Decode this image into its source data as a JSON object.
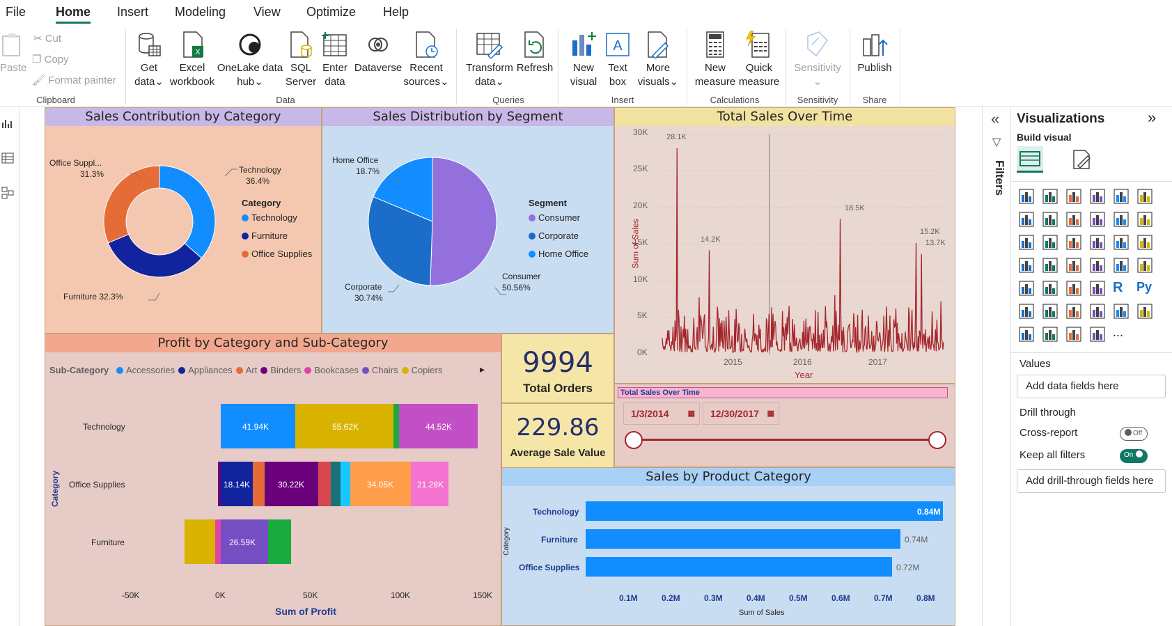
{
  "menu": {
    "items": [
      "File",
      "Home",
      "Insert",
      "Modeling",
      "View",
      "Optimize",
      "Help"
    ],
    "active": "Home"
  },
  "ribbon": {
    "clipboard": {
      "paste": "Paste",
      "cut": "Cut",
      "copy": "Copy",
      "format_painter": "Format painter",
      "label": "Clipboard"
    },
    "data": {
      "get_data": [
        "Get",
        "data"
      ],
      "excel": [
        "Excel",
        "workbook"
      ],
      "onelake": [
        "OneLake data",
        "hub"
      ],
      "sql": [
        "SQL",
        "Server"
      ],
      "enter": [
        "Enter",
        "data"
      ],
      "dataverse": "Dataverse",
      "recent": [
        "Recent",
        "sources"
      ],
      "label": "Data"
    },
    "queries": {
      "transform": [
        "Transform",
        "data"
      ],
      "refresh": "Refresh",
      "label": "Queries"
    },
    "insert": {
      "new_visual": [
        "New",
        "visual"
      ],
      "text_box": [
        "Text",
        "box"
      ],
      "more_visuals": [
        "More",
        "visuals"
      ],
      "label": "Insert"
    },
    "calculations": {
      "new_measure": [
        "New",
        "measure"
      ],
      "quick_measure": [
        "Quick",
        "measure"
      ],
      "label": "Calculations"
    },
    "sensitivity": {
      "button": "Sensitivity",
      "label": "Sensitivity"
    },
    "share": {
      "publish": "Publish",
      "label": "Share"
    }
  },
  "donut": {
    "title": "Sales Contribution by Category",
    "legend_title": "Category",
    "slices": [
      {
        "name": "Technology",
        "pct": 36.4,
        "label": "Technology",
        "pct_label": "36.4%",
        "color": "#118DFF"
      },
      {
        "name": "Furniture",
        "pct": 32.3,
        "label": "Furniture 32.3%",
        "pct_label": "",
        "color": "#12239E"
      },
      {
        "name": "Office Supplies",
        "pct": 31.3,
        "label": "Office Suppl...",
        "pct_label": "31.3%",
        "color": "#E66C37"
      }
    ]
  },
  "pie": {
    "title": "Sales Distribution by Segment",
    "legend_title": "Segment",
    "slices": [
      {
        "name": "Consumer",
        "pct": 50.56,
        "label": "Consumer",
        "pct_label": "50.56%",
        "color": "#9370DB"
      },
      {
        "name": "Corporate",
        "pct": 30.74,
        "label": "Corporate",
        "pct_label": "30.74%",
        "color": "#1A6EC9"
      },
      {
        "name": "Home Office",
        "pct": 18.7,
        "label": "Home Office",
        "pct_label": "18.7%",
        "color": "#118DFF"
      }
    ]
  },
  "timeline": {
    "title": "Total Sales Over Time",
    "ylabel": "Sum of Sales",
    "xlabel": "Year",
    "yticks": [
      "0K",
      "5K",
      "10K",
      "15K",
      "20K",
      "25K",
      "30K"
    ],
    "xticks": [
      "2015",
      "2016",
      "2017"
    ],
    "annotations": [
      "28.1K",
      "14.2K",
      "18.5K",
      "15.2K",
      "13.7K"
    ],
    "color": "#A4262C"
  },
  "slicer": {
    "title": "Total Sales Over Time",
    "start": "1/3/2014",
    "end": "12/30/2017"
  },
  "kpis": [
    {
      "value": "9994",
      "label": "Total Orders"
    },
    {
      "value": "229.86",
      "label": "Average Sale Value"
    }
  ],
  "stacked": {
    "title": "Profit by Category and Sub-Category",
    "legend_title": "Sub-Category",
    "legend": [
      {
        "name": "Accessories",
        "color": "#118DFF"
      },
      {
        "name": "Appliances",
        "color": "#12239E"
      },
      {
        "name": "Art",
        "color": "#E66C37"
      },
      {
        "name": "Binders",
        "color": "#6B007B"
      },
      {
        "name": "Bookcases",
        "color": "#E044A7"
      },
      {
        "name": "Chairs",
        "color": "#744EC2"
      },
      {
        "name": "Copiers",
        "color": "#D9B300"
      }
    ],
    "ylabel": "Category",
    "xlabel": "Sum of Profit",
    "xticks": [
      "-50K",
      "0K",
      "50K",
      "100K",
      "150K"
    ],
    "categories": [
      "Technology",
      "Office Supplies",
      "Furniture"
    ],
    "segment_labels": [
      "41.94K",
      "55.62K",
      "44.52K",
      "18.14K",
      "30.22K",
      "34.05K",
      "21.28K",
      "26.59K"
    ]
  },
  "hbar": {
    "title": "Sales by Product Category",
    "ylabel": "Category",
    "xlabel": "Sum of Sales",
    "xticks": [
      "0.1M",
      "0.2M",
      "0.3M",
      "0.4M",
      "0.5M",
      "0.6M",
      "0.7M",
      "0.8M"
    ],
    "bars": [
      {
        "name": "Technology",
        "value": 0.84,
        "label": "0.84M"
      },
      {
        "name": "Furniture",
        "value": 0.74,
        "label": "0.74M"
      },
      {
        "name": "Office Supplies",
        "value": 0.72,
        "label": "0.72M"
      }
    ],
    "color": "#118DFF"
  },
  "filters": {
    "label": "Filters"
  },
  "viz_pane": {
    "title": "Visualizations",
    "build_visual": "Build visual",
    "values_label": "Values",
    "values_placeholder": "Add data fields here",
    "drill_through": "Drill through",
    "cross_report": "Cross-report",
    "cross_report_state": "Off",
    "keep_filters": "Keep all filters",
    "keep_filters_state": "On",
    "drill_placeholder": "Add drill-through fields here",
    "more": "..."
  },
  "chart_data": [
    {
      "type": "pie",
      "title": "Sales Contribution by Category",
      "categories": [
        "Technology",
        "Furniture",
        "Office Supplies"
      ],
      "values": [
        36.4,
        32.3,
        31.3
      ]
    },
    {
      "type": "pie",
      "title": "Sales Distribution by Segment",
      "categories": [
        "Consumer",
        "Corporate",
        "Home Office"
      ],
      "values": [
        50.56,
        30.74,
        18.7
      ]
    },
    {
      "type": "bar",
      "title": "Sales by Product Category",
      "categories": [
        "Technology",
        "Furniture",
        "Office Supplies"
      ],
      "values": [
        0.84,
        0.74,
        0.72
      ],
      "xlabel": "Sum of Sales",
      "ylabel": "Category"
    },
    {
      "type": "bar",
      "title": "Profit by Category and Sub-Category",
      "categories": [
        "Technology",
        "Office Supplies",
        "Furniture"
      ],
      "series": [
        {
          "name": "Accessories",
          "values": [
            41.94,
            0,
            0
          ]
        },
        {
          "name": "Copiers",
          "values": [
            55.62,
            0,
            0
          ]
        },
        {
          "name": "Binders",
          "values": [
            0,
            30.22,
            0
          ]
        },
        {
          "name": "Appliances",
          "values": [
            0,
            18.14,
            0
          ]
        },
        {
          "name": "Chairs",
          "values": [
            0,
            0,
            26.59
          ]
        }
      ],
      "xlabel": "Sum of Profit",
      "ylabel": "Category"
    },
    {
      "type": "line",
      "title": "Total Sales Over Time",
      "xlabel": "Year",
      "ylabel": "Sum of Sales",
      "ylim": [
        0,
        30000
      ],
      "peaks": [
        28100,
        14200,
        18500,
        15200,
        13700
      ]
    }
  ]
}
